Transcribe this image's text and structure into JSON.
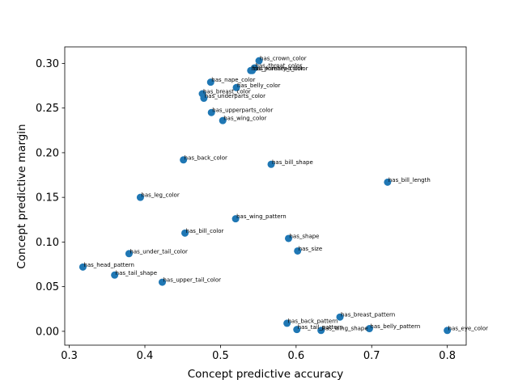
{
  "chart_data": {
    "type": "scatter",
    "title": "",
    "xlabel": "Concept predictive accuracy",
    "ylabel": "Concept predictive margin",
    "xlim": [
      0.294,
      0.825
    ],
    "ylim": [
      -0.0155,
      0.3185
    ],
    "xticks": [
      0.3,
      0.4,
      0.5,
      0.6,
      0.7,
      0.8
    ],
    "yticks": [
      0.0,
      0.05,
      0.1,
      0.15,
      0.2,
      0.25,
      0.3
    ],
    "xtick_labels": [
      "0.3",
      "0.4",
      "0.5",
      "0.6",
      "0.7",
      "0.8"
    ],
    "ytick_labels": [
      "0.00",
      "0.05",
      "0.10",
      "0.15",
      "0.20",
      "0.25",
      "0.30"
    ],
    "grid": false,
    "marker_color": "#1f77b4",
    "points": [
      {
        "label": "has_crown_color",
        "x": 0.551,
        "y": 0.303
      },
      {
        "label": "has_throat_color",
        "x": 0.545,
        "y": 0.295
      },
      {
        "label": "has_forehead_color",
        "x": 0.542,
        "y": 0.292
      },
      {
        "label": "has_primary_color",
        "x": 0.54,
        "y": 0.292
      },
      {
        "label": "has_nape_color",
        "x": 0.487,
        "y": 0.279
      },
      {
        "label": "has_belly_color",
        "x": 0.521,
        "y": 0.273
      },
      {
        "label": "has_breast_color",
        "x": 0.476,
        "y": 0.266
      },
      {
        "label": "has_underparts_color",
        "x": 0.478,
        "y": 0.261
      },
      {
        "label": "has_upperparts_color",
        "x": 0.488,
        "y": 0.245
      },
      {
        "label": "has_wing_color",
        "x": 0.503,
        "y": 0.236
      },
      {
        "label": "has_back_color",
        "x": 0.451,
        "y": 0.192
      },
      {
        "label": "has_bill_shape",
        "x": 0.567,
        "y": 0.187
      },
      {
        "label": "has_bill_length",
        "x": 0.721,
        "y": 0.167
      },
      {
        "label": "has_leg_color",
        "x": 0.394,
        "y": 0.15
      },
      {
        "label": "has_wing_pattern",
        "x": 0.52,
        "y": 0.126
      },
      {
        "label": "has_bill_color",
        "x": 0.453,
        "y": 0.11
      },
      {
        "label": "has_shape",
        "x": 0.59,
        "y": 0.104
      },
      {
        "label": "has_size",
        "x": 0.602,
        "y": 0.09
      },
      {
        "label": "has_under_tail_color",
        "x": 0.379,
        "y": 0.087
      },
      {
        "label": "has_head_pattern",
        "x": 0.318,
        "y": 0.072
      },
      {
        "label": "has_tail_shape",
        "x": 0.36,
        "y": 0.063
      },
      {
        "label": "has_upper_tail_color",
        "x": 0.423,
        "y": 0.055
      },
      {
        "label": "has_breast_pattern",
        "x": 0.658,
        "y": 0.016
      },
      {
        "label": "has_back_pattern",
        "x": 0.588,
        "y": 0.009
      },
      {
        "label": "has_tail_pattern",
        "x": 0.601,
        "y": 0.002
      },
      {
        "label": "has_wing_shape",
        "x": 0.633,
        "y": 0.001
      },
      {
        "label": "has_belly_pattern",
        "x": 0.697,
        "y": 0.003
      },
      {
        "label": "has_eye_color",
        "x": 0.8,
        "y": 0.001
      }
    ]
  }
}
